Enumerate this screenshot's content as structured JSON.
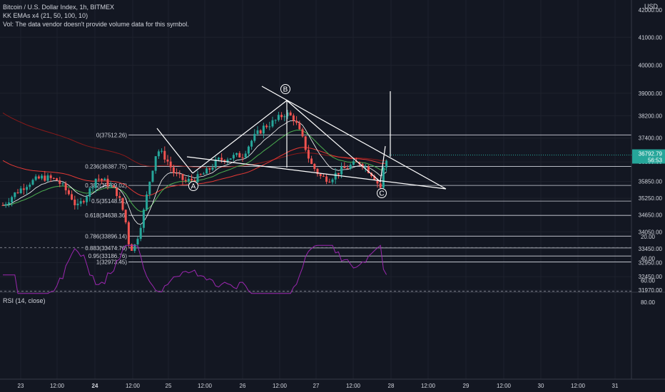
{
  "legend": {
    "symbol": "Bitcoin / U.S. Dollar Index, 1h, BITMEX",
    "indicator": "KK EMAs x4 (21, 50, 100, 10)",
    "volume_note": "Vol: The data vendor doesn't provide volume data for this symbol."
  },
  "currency": "USD",
  "price_axis": {
    "ticks": [
      "41000.00",
      "40000.00",
      "39000.00",
      "38200.00",
      "37400.00",
      "36550.00",
      "35850.00",
      "35250.00",
      "34650.00",
      "34050.00",
      "33450.00",
      "32950.00",
      "32450.00",
      "31970.00"
    ],
    "top_partial": "42000.00",
    "last_price": "36792.79",
    "countdown": "56:53",
    "last_color": "#26a69a"
  },
  "rsi": {
    "title": "RSI (14, close)",
    "ticks": [
      "80.00",
      "60.00",
      "40.00",
      "20.00"
    ],
    "color": "#9c27b0"
  },
  "time_axis": [
    "23",
    "12:00",
    "24",
    "12:00",
    "25",
    "12:00",
    "26",
    "12:00",
    "27",
    "12:00",
    "28",
    "12:00",
    "29",
    "12:00",
    "30",
    "12:00",
    "31"
  ],
  "fib_levels": [
    {
      "ratio": "0",
      "price": "37512.26",
      "label": "0(37512.26)"
    },
    {
      "ratio": "0.236",
      "price": "36387.75",
      "label": "0.236(36387.75)"
    },
    {
      "ratio": "0.382",
      "price": "35709.02",
      "label": "0.382(35709.02)"
    },
    {
      "ratio": "0.5",
      "price": "35148.51",
      "label": "0.5(35148.51)"
    },
    {
      "ratio": "0.618",
      "price": "34638.36",
      "label": "0.618(34638.36)"
    },
    {
      "ratio": "0.786",
      "price": "33896.14",
      "label": "0.786(33896.14)"
    },
    {
      "ratio": "0.883",
      "price": "33474.76",
      "label": "0.883(33474.76)"
    },
    {
      "ratio": "0.95",
      "price": "33186.76",
      "label": "0.95(33186.76)"
    },
    {
      "ratio": "1",
      "price": "32973.45",
      "label": "1(32973.45)"
    }
  ],
  "pattern_points": [
    "A",
    "B",
    "C"
  ],
  "colors": {
    "background": "#131722",
    "up": "#26a69a",
    "down": "#ef5350",
    "ema_dark_red": "#8b1a1a",
    "ema_red": "#e53935",
    "ema_green": "#4caf50",
    "ema_white": "#ffffff"
  }
}
